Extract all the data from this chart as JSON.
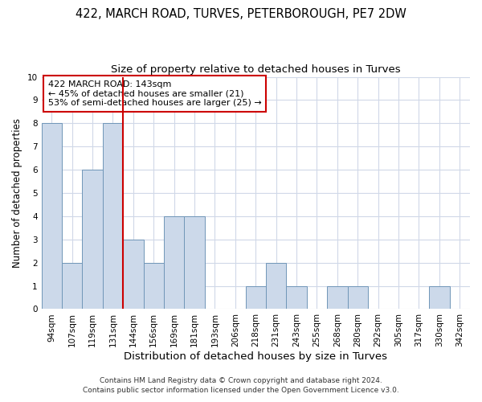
{
  "title": "422, MARCH ROAD, TURVES, PETERBOROUGH, PE7 2DW",
  "subtitle": "Size of property relative to detached houses in Turves",
  "xlabel": "Distribution of detached houses by size in Turves",
  "ylabel": "Number of detached properties",
  "categories": [
    "94sqm",
    "107sqm",
    "119sqm",
    "131sqm",
    "144sqm",
    "156sqm",
    "169sqm",
    "181sqm",
    "193sqm",
    "206sqm",
    "218sqm",
    "231sqm",
    "243sqm",
    "255sqm",
    "268sqm",
    "280sqm",
    "292sqm",
    "305sqm",
    "317sqm",
    "330sqm",
    "342sqm"
  ],
  "values": [
    8,
    2,
    6,
    8,
    3,
    2,
    4,
    4,
    0,
    0,
    1,
    2,
    1,
    0,
    1,
    1,
    0,
    0,
    0,
    1,
    0
  ],
  "bar_color": "#ccd9ea",
  "bar_edge_color": "#7096b8",
  "vline_index": 3.5,
  "vline_color": "#cc0000",
  "annotation_text": "422 MARCH ROAD: 143sqm\n← 45% of detached houses are smaller (21)\n53% of semi-detached houses are larger (25) →",
  "annotation_box_color": "#ffffff",
  "annotation_box_edge_color": "#cc0000",
  "ylim": [
    0,
    10
  ],
  "yticks": [
    0,
    1,
    2,
    3,
    4,
    5,
    6,
    7,
    8,
    9,
    10
  ],
  "footnote1": "Contains HM Land Registry data © Crown copyright and database right 2024.",
  "footnote2": "Contains public sector information licensed under the Open Government Licence v3.0.",
  "bg_color": "#ffffff",
  "grid_color": "#d0d8e8",
  "title_fontsize": 10.5,
  "subtitle_fontsize": 9.5,
  "xlabel_fontsize": 9.5,
  "ylabel_fontsize": 8.5,
  "tick_fontsize": 7.5,
  "annotation_fontsize": 8,
  "footnote_fontsize": 6.5
}
